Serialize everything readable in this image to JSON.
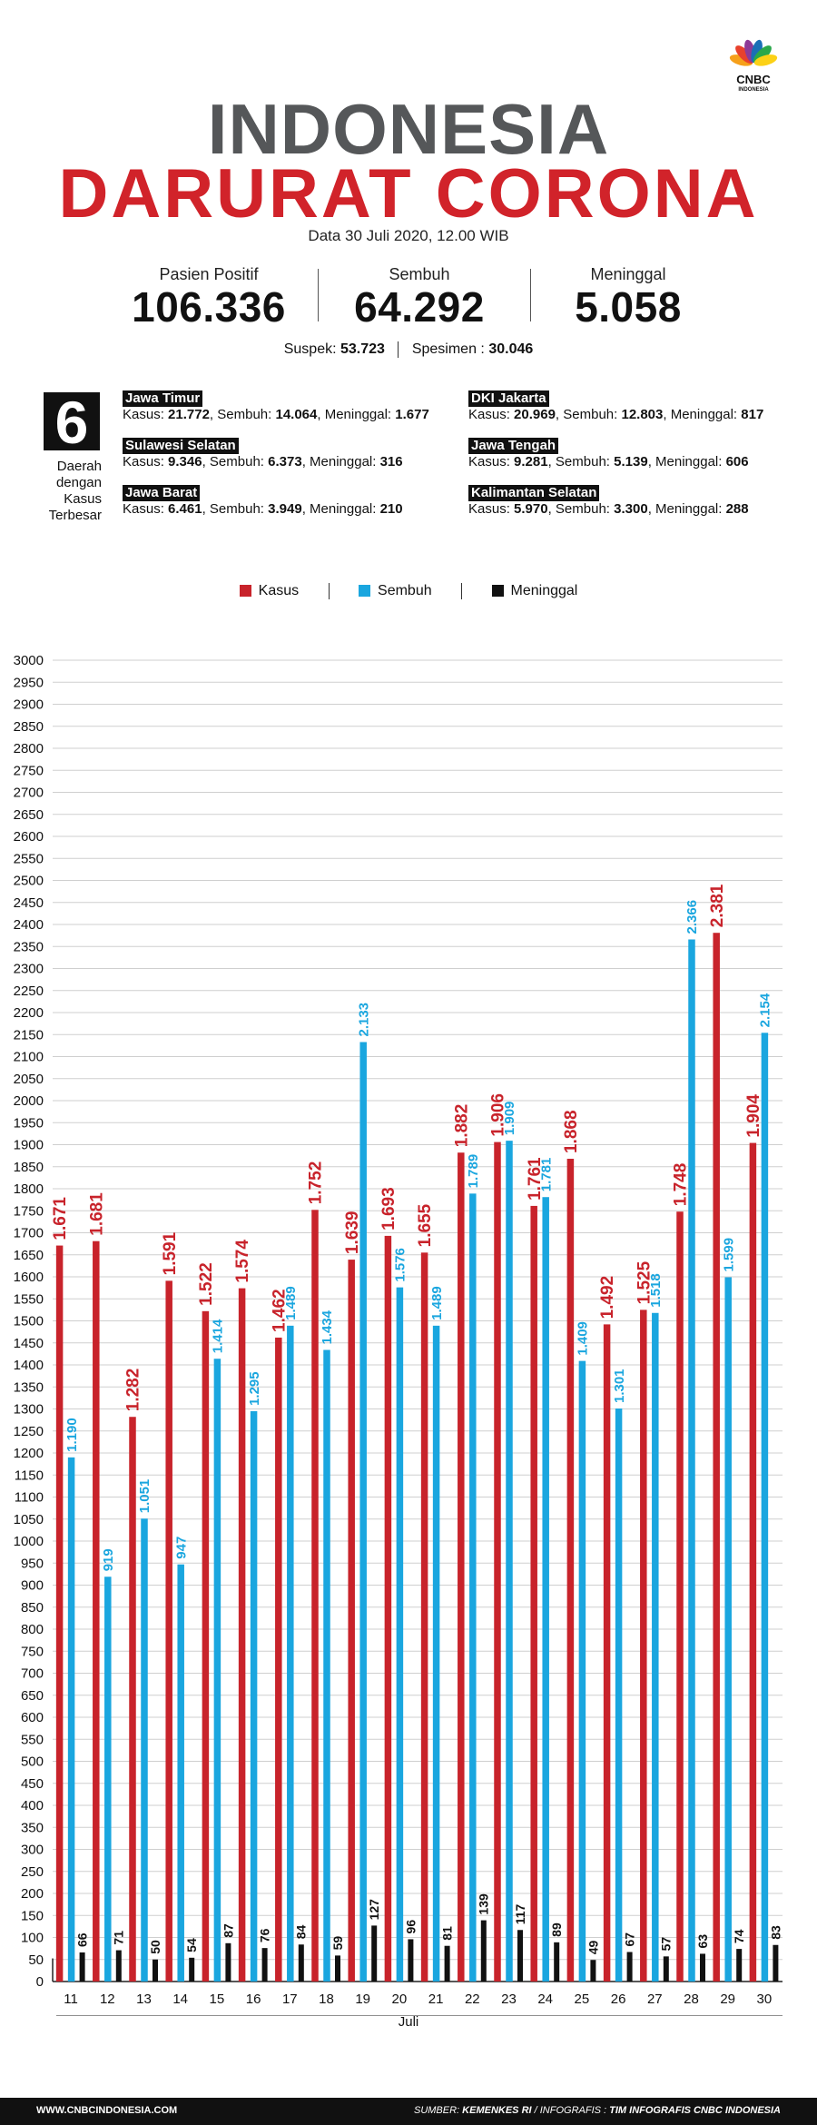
{
  "brand": {
    "name": "CNBC",
    "sub": "INDONESIA",
    "peacock_colors": [
      "#f6a01a",
      "#e8412c",
      "#8e3a96",
      "#1a6fb6",
      "#2aa84a",
      "#fcd116"
    ]
  },
  "header": {
    "title_line1": "INDONESIA",
    "title_line2": "DARURAT CORONA",
    "date": "Data 30 Juli 2020, 12.00 WIB"
  },
  "stats": [
    {
      "label": "Pasien Positif",
      "value": "106.336"
    },
    {
      "label": "Sembuh",
      "value": "64.292"
    },
    {
      "label": "Meninggal",
      "value": "5.058"
    }
  ],
  "secondary": {
    "suspek_label": "Suspek:",
    "suspek": "53.723",
    "spesimen_label": "Spesimen :",
    "spesimen": "30.046"
  },
  "regions_block": {
    "count": "6",
    "caption": [
      "Daerah",
      "dengan",
      "Kasus",
      "Terbesar"
    ],
    "labels": {
      "kasus": "Kasus:",
      "sembuh": "Sembuh:",
      "meninggal": "Meninggal:"
    },
    "regions": [
      {
        "name": "Jawa Timur",
        "kasus": "21.772",
        "sembuh": "14.064",
        "meninggal": "1.677"
      },
      {
        "name": "Sulawesi Selatan",
        "kasus": "9.346",
        "sembuh": "6.373",
        "meninggal": "316"
      },
      {
        "name": "Jawa Barat",
        "kasus": "6.461",
        "sembuh": "3.949",
        "meninggal": "210"
      },
      {
        "name": "DKI Jakarta",
        "kasus": "20.969",
        "sembuh": "12.803",
        "meninggal": "817"
      },
      {
        "name": "Jawa Tengah",
        "kasus": "9.281",
        "sembuh": "5.139",
        "meninggal": "606"
      },
      {
        "name": "Kalimantan Selatan",
        "kasus": "5.970",
        "sembuh": "3.300",
        "meninggal": "288"
      }
    ]
  },
  "chart_data": {
    "type": "bar",
    "xlabel": "Juli",
    "ylabel": "",
    "ylim": [
      0,
      3000
    ],
    "yticks": [
      0,
      50,
      100,
      150,
      200,
      250,
      300,
      350,
      400,
      450,
      500,
      550,
      600,
      650,
      700,
      750,
      800,
      850,
      900,
      950,
      1000,
      1050,
      1100,
      1150,
      1200,
      1250,
      1300,
      1350,
      1400,
      1450,
      1500,
      1550,
      1600,
      1650,
      1700,
      1750,
      1800,
      1850,
      1900,
      1950,
      2000,
      2050,
      2100,
      2150,
      2200,
      2250,
      2300,
      2350,
      2400,
      2450,
      2500,
      2550,
      2600,
      2650,
      2700,
      2750,
      2800,
      2850,
      2900,
      2950,
      3000
    ],
    "grid": true,
    "legend_position": "top-center",
    "categories": [
      "11",
      "12",
      "13",
      "14",
      "15",
      "16",
      "17",
      "18",
      "19",
      "20",
      "21",
      "22",
      "23",
      "24",
      "25",
      "26",
      "27",
      "28",
      "29",
      "30"
    ],
    "series": [
      {
        "name": "Kasus",
        "color": "#c8232b",
        "values": [
          1671,
          1681,
          1282,
          1591,
          1522,
          1574,
          1462,
          1752,
          1639,
          1693,
          1655,
          1882,
          1906,
          1761,
          1868,
          1492,
          1525,
          1748,
          2381,
          1904
        ],
        "labels": [
          "1.671",
          "1.681",
          "1.282",
          "1.591",
          "1.522",
          "1.574",
          "1.462",
          "1.752",
          "1.639",
          "1.693",
          "1.655",
          "1.882",
          "1.906",
          "1.761",
          "1.868",
          "1.492",
          "1.525",
          "1.748",
          "2.381",
          "1.904"
        ]
      },
      {
        "name": "Sembuh",
        "color": "#1aa6df",
        "values": [
          1190,
          919,
          1051,
          947,
          1414,
          1295,
          1489,
          1434,
          2133,
          1576,
          1489,
          1789,
          1909,
          1781,
          1409,
          1301,
          1518,
          2366,
          1599,
          2154
        ],
        "labels": [
          "1.190",
          "919",
          "1.051",
          "947",
          "1.414",
          "1.295",
          "1.489",
          "1.434",
          "2.133",
          "1.576",
          "1.489",
          "1.789",
          "1.909",
          "1.781",
          "1.409",
          "1.301",
          "1.518",
          "2.366",
          "1.599",
          "2.154"
        ]
      },
      {
        "name": "Meninggal",
        "color": "#111111",
        "values": [
          66,
          71,
          50,
          54,
          87,
          76,
          84,
          59,
          127,
          96,
          81,
          139,
          117,
          89,
          49,
          67,
          57,
          63,
          74,
          83
        ],
        "labels": [
          "66",
          "71",
          "50",
          "54",
          "87",
          "76",
          "84",
          "59",
          "127",
          "96",
          "81",
          "139",
          "117",
          "89",
          "49",
          "67",
          "57",
          "63",
          "74",
          "83"
        ]
      }
    ]
  },
  "footer": {
    "site": "WWW.CNBCINDONESIA.COM",
    "source_label": "SUMBER:",
    "source": "KEMENKES RI",
    "infografis_label": "/ INFOGRAFIS :",
    "infografis": "TIM INFOGRAFIS CNBC INDONESIA"
  }
}
